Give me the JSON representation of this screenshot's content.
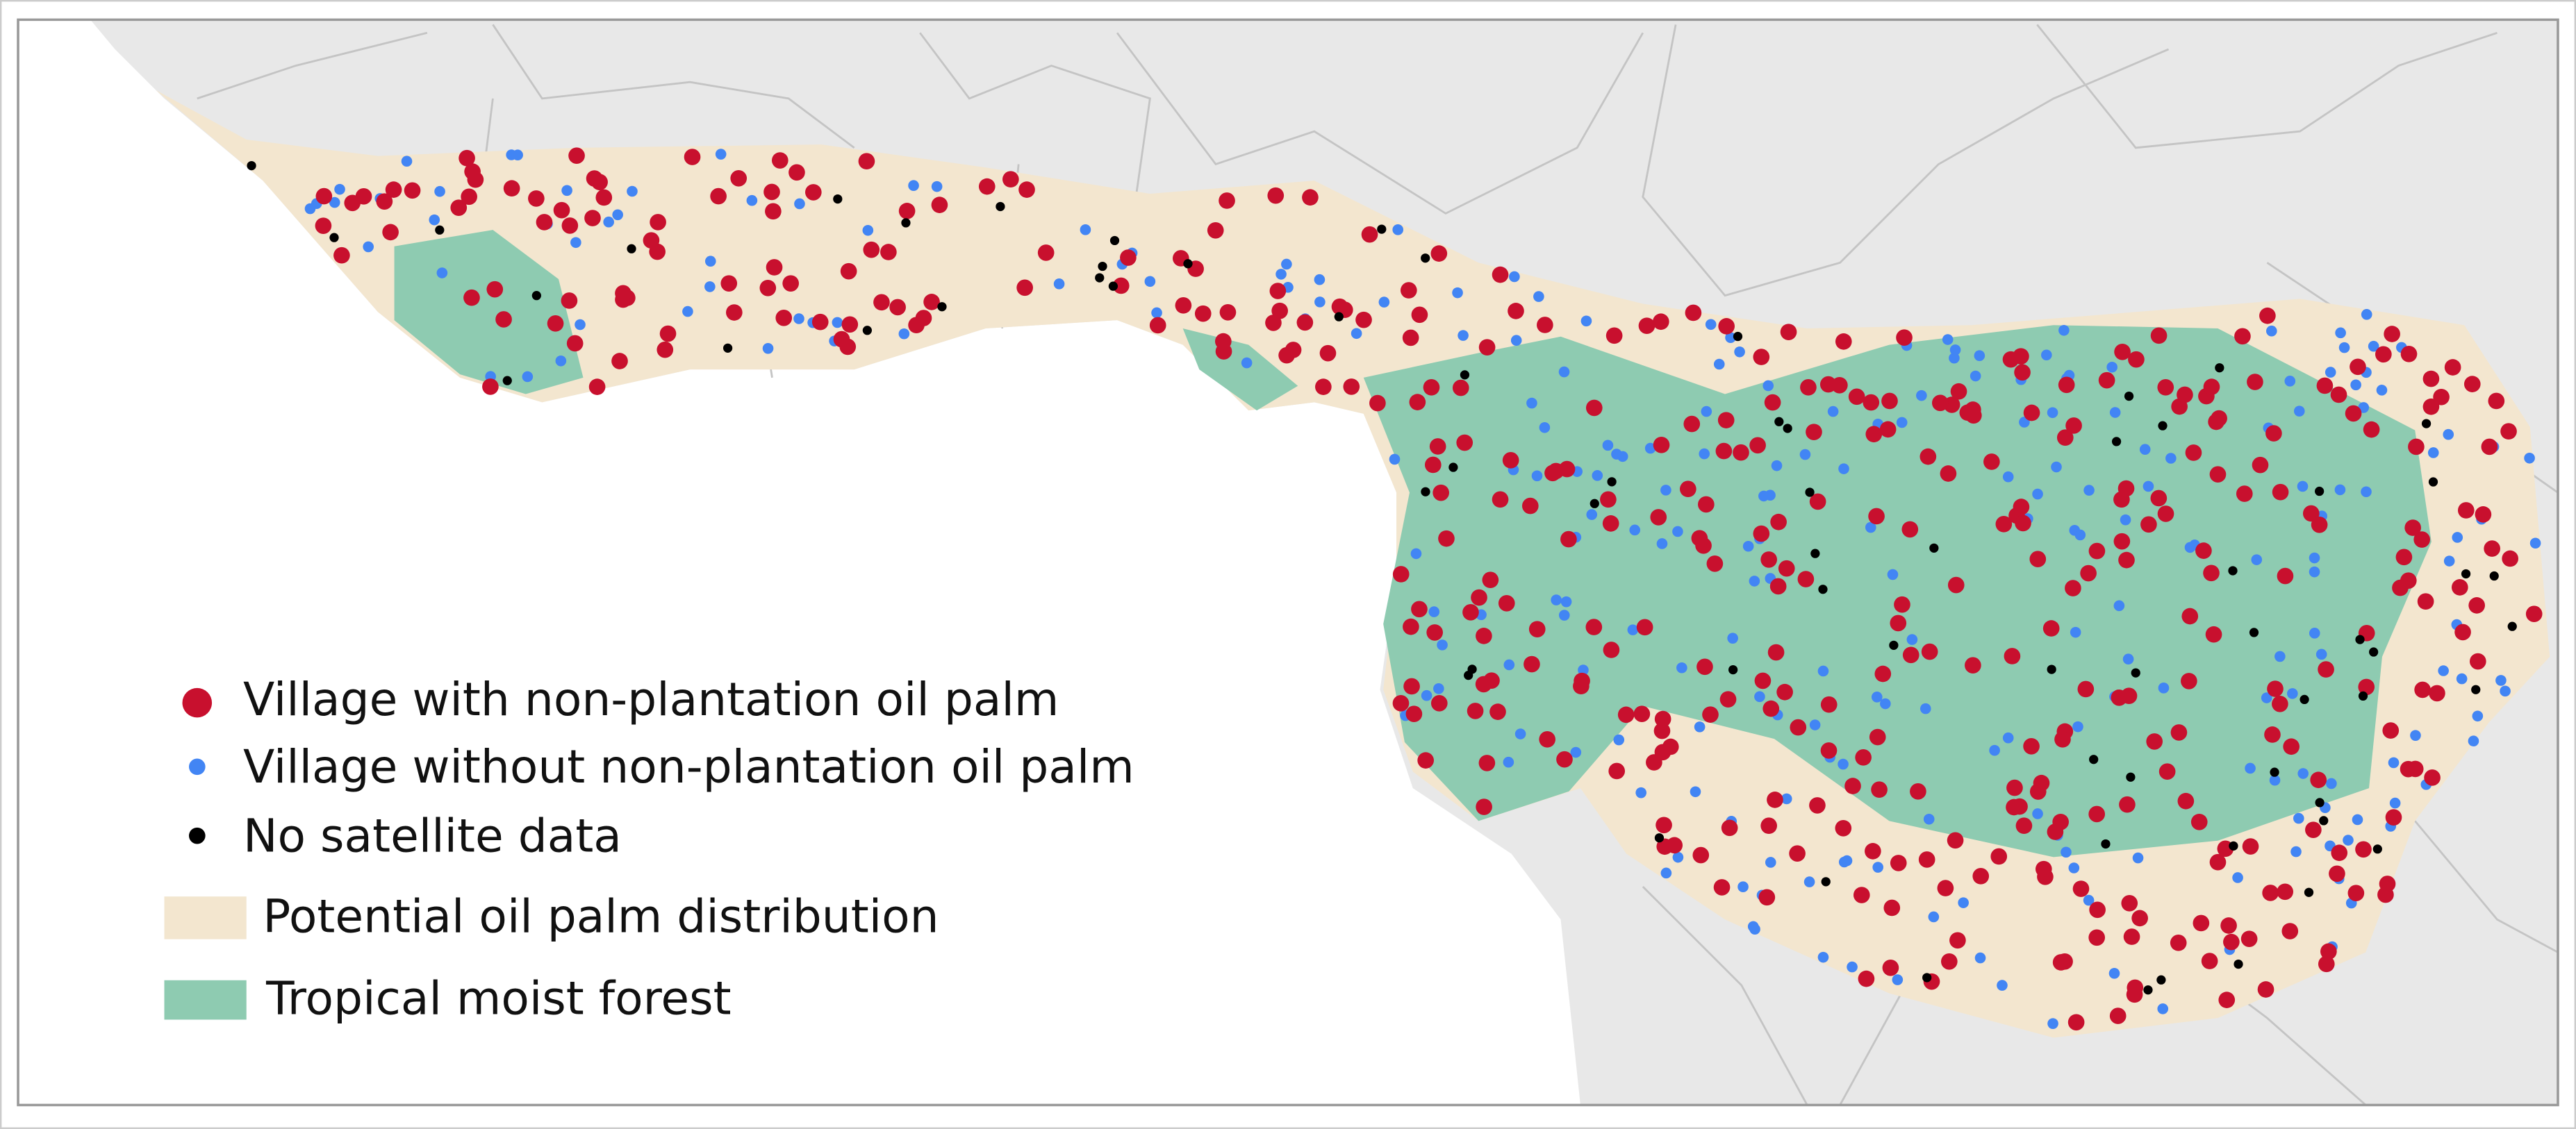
{
  "legend": {
    "items": [
      {
        "label": "Village with non-plantation oil palm"
      },
      {
        "label": "Village without non-plantation oil palm"
      },
      {
        "label": "No satellite data"
      },
      {
        "label": "Potential oil palm distribution"
      },
      {
        "label": "Tropical moist forest"
      }
    ]
  }
}
